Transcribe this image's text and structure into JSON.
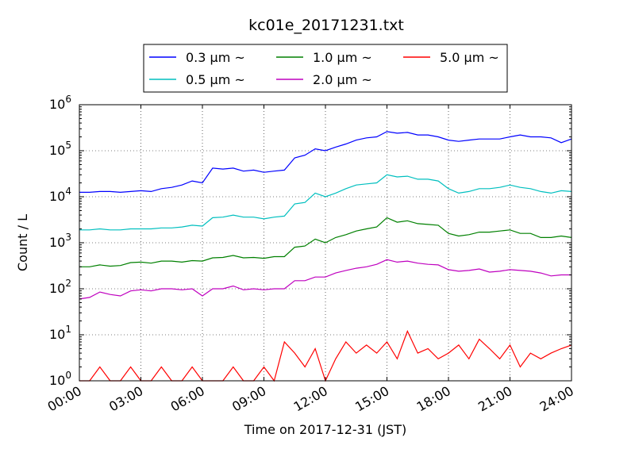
{
  "chart_data": {
    "type": "line",
    "title": "kc01e_20171231.txt",
    "xlabel": "Time on 2017-12-31 (JST)",
    "ylabel": "Count / L",
    "yscale": "log",
    "xlim": [
      "00:00",
      "24:00"
    ],
    "ylim": [
      1,
      1000000
    ],
    "grid": true,
    "legend_position": "top-center",
    "x_ticks": [
      "00:00",
      "03:00",
      "06:00",
      "09:00",
      "12:00",
      "15:00",
      "18:00",
      "21:00",
      "24:00"
    ],
    "y_ticks": [
      {
        "value": 1,
        "base": "10",
        "exp": "0"
      },
      {
        "value": 10,
        "base": "10",
        "exp": "1"
      },
      {
        "value": 100,
        "base": "10",
        "exp": "2"
      },
      {
        "value": 1000,
        "base": "10",
        "exp": "3"
      },
      {
        "value": 10000,
        "base": "10",
        "exp": "4"
      },
      {
        "value": 100000,
        "base": "10",
        "exp": "5"
      },
      {
        "value": 1000000,
        "base": "10",
        "exp": "6"
      }
    ],
    "x": [
      "00:00",
      "00:30",
      "01:00",
      "01:30",
      "02:00",
      "02:30",
      "03:00",
      "03:30",
      "04:00",
      "04:30",
      "05:00",
      "05:30",
      "06:00",
      "06:30",
      "07:00",
      "07:30",
      "08:00",
      "08:30",
      "09:00",
      "09:30",
      "10:00",
      "10:30",
      "11:00",
      "11:30",
      "12:00",
      "12:30",
      "13:00",
      "13:30",
      "14:00",
      "14:30",
      "15:00",
      "15:30",
      "16:00",
      "16:30",
      "17:00",
      "17:30",
      "18:00",
      "18:30",
      "19:00",
      "19:30",
      "20:00",
      "20:30",
      "21:00",
      "21:30",
      "22:00",
      "22:30",
      "23:00",
      "23:30",
      "24:00"
    ],
    "series": [
      {
        "name": "0.3 μm ~",
        "color": "#0000ff",
        "values": [
          12500,
          12500,
          13000,
          13000,
          12500,
          13000,
          13500,
          13000,
          15000,
          16000,
          18000,
          22000,
          20000,
          42000,
          40000,
          42000,
          36000,
          38000,
          34000,
          36000,
          38000,
          70000,
          80000,
          110000,
          100000,
          120000,
          140000,
          170000,
          190000,
          200000,
          260000,
          240000,
          250000,
          220000,
          220000,
          200000,
          170000,
          160000,
          170000,
          180000,
          180000,
          180000,
          200000,
          220000,
          200000,
          200000,
          190000,
          150000,
          180000
        ]
      },
      {
        "name": "0.5 μm ~",
        "color": "#00bfbf",
        "values": [
          1900,
          1900,
          2000,
          1900,
          1900,
          2000,
          2000,
          2000,
          2100,
          2100,
          2200,
          2400,
          2300,
          3500,
          3600,
          4000,
          3600,
          3600,
          3300,
          3600,
          3800,
          7000,
          7500,
          12000,
          10000,
          12000,
          15000,
          18000,
          19000,
          20000,
          30000,
          27000,
          28000,
          24000,
          24000,
          22000,
          15000,
          12000,
          13000,
          15000,
          15000,
          16000,
          18000,
          16000,
          15000,
          13000,
          12000,
          13500,
          13000
        ]
      },
      {
        "name": "1.0 μm ~",
        "color": "#008000",
        "values": [
          300,
          300,
          330,
          310,
          320,
          370,
          380,
          360,
          400,
          400,
          380,
          410,
          400,
          470,
          480,
          530,
          470,
          480,
          460,
          500,
          500,
          800,
          850,
          1200,
          1000,
          1300,
          1500,
          1800,
          2000,
          2200,
          3500,
          2800,
          3000,
          2600,
          2500,
          2400,
          1600,
          1400,
          1500,
          1700,
          1700,
          1800,
          1900,
          1600,
          1600,
          1300,
          1300,
          1400,
          1300
        ]
      },
      {
        "name": "2.0 μm ~",
        "color": "#bf00bf",
        "values": [
          60,
          65,
          85,
          75,
          70,
          90,
          95,
          90,
          100,
          100,
          95,
          100,
          70,
          100,
          100,
          115,
          95,
          100,
          95,
          100,
          100,
          150,
          150,
          180,
          180,
          220,
          250,
          280,
          300,
          340,
          430,
          380,
          400,
          360,
          340,
          330,
          260,
          240,
          250,
          270,
          230,
          240,
          260,
          250,
          240,
          220,
          190,
          200,
          200
        ]
      },
      {
        "name": "5.0 μm ~",
        "color": "#ff0000",
        "values": [
          1,
          1,
          2,
          1,
          1,
          2,
          1,
          1,
          2,
          1,
          1,
          2,
          1,
          1,
          1,
          2,
          1,
          1,
          2,
          1,
          7,
          4,
          2,
          5,
          1,
          3,
          7,
          4,
          6,
          4,
          7,
          3,
          12,
          4,
          5,
          3,
          4,
          6,
          3,
          8,
          5,
          3,
          6,
          2,
          4,
          3,
          4,
          5,
          6
        ]
      }
    ]
  }
}
